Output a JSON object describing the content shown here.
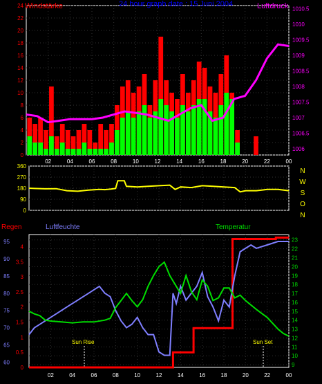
{
  "colors": {
    "background": "#000000",
    "wind_bar": "#ff0000",
    "wind_mean": "#00ff00",
    "pressure": "#ff00ff",
    "direction": "#ffff00",
    "humidity": "#7f7fff",
    "temperature": "#00dd00",
    "rain": "#ff0000",
    "grid": "#ffffff",
    "tick_text": "#ffffff"
  },
  "chart_data": [
    {
      "type": "bar",
      "title": "24 hour graph date : 15 Juni 2004",
      "left_label": "Windstärke",
      "right_label": "Luftdruck",
      "x_ticks": [
        "02",
        "04",
        "06",
        "08",
        "10",
        "12",
        "14",
        "16",
        "18",
        "20",
        "22",
        "00"
      ],
      "y_left_ticks": [
        "0",
        "2",
        "4",
        "6",
        "8",
        "10",
        "12",
        "14",
        "16",
        "18",
        "20",
        "22",
        "24"
      ],
      "y_left_range": [
        0,
        24
      ],
      "y_right_ticks": [
        "1006",
        "1006.5",
        "1007",
        "1007.5",
        "1008",
        "1008.5",
        "1009",
        "1009.5",
        "1010",
        "1010.5"
      ],
      "y_right_range": [
        1005.8,
        1010.6
      ],
      "x_range": [
        0,
        24
      ],
      "series": [
        {
          "name": "Windstärke",
          "x": [
            0.3,
            0.8,
            1.3,
            1.8,
            2.3,
            2.8,
            3.3,
            3.8,
            4.3,
            4.8,
            5.3,
            5.8,
            6.3,
            6.8,
            7.3,
            7.8,
            8.3,
            8.8,
            9.3,
            9.8,
            10.3,
            10.8,
            11.3,
            11.8,
            12.3,
            12.8,
            13.3,
            13.8,
            14.3,
            14.8,
            15.3,
            15.8,
            16.3,
            16.8,
            17.3,
            17.8,
            18.3,
            18.8,
            19.3,
            21.0
          ],
          "values": [
            6,
            5,
            6,
            4,
            11,
            3,
            5,
            4,
            3,
            4,
            5,
            4,
            2,
            5,
            4,
            5,
            8,
            11,
            12,
            10,
            11,
            13,
            8,
            12,
            19,
            12,
            10,
            9,
            13,
            10,
            12,
            15,
            14,
            11,
            10,
            13,
            16,
            10,
            4,
            3
          ]
        },
        {
          "name": "Mittelwind",
          "x": [
            0.3,
            0.8,
            1.3,
            1.8,
            2.3,
            2.8,
            3.3,
            3.8,
            4.3,
            4.8,
            5.3,
            5.8,
            6.3,
            6.8,
            7.3,
            7.8,
            8.3,
            8.8,
            9.3,
            9.8,
            10.3,
            10.8,
            11.3,
            11.8,
            12.3,
            12.8,
            13.3,
            13.8,
            14.3,
            14.8,
            15.3,
            15.8,
            16.3,
            16.8,
            17.3,
            17.8,
            18.3,
            18.8,
            19.3
          ],
          "values": [
            3,
            2,
            2,
            1,
            3,
            1,
            2,
            1,
            1,
            1,
            2,
            1,
            1,
            1,
            1,
            2,
            4,
            6,
            7,
            6,
            7,
            8,
            6,
            7,
            9,
            8,
            7,
            6,
            8,
            7,
            8,
            9,
            9,
            7,
            6,
            8,
            10,
            9,
            2
          ]
        },
        {
          "name": "Luftdruck",
          "x": [
            0,
            1,
            2,
            3,
            4,
            5,
            6,
            7,
            8,
            9,
            10,
            11,
            12,
            13,
            14,
            15,
            16,
            17,
            18,
            19,
            20,
            21,
            22,
            23,
            24
          ],
          "values": [
            1007.1,
            1007.05,
            1006.85,
            1006.9,
            1006.95,
            1006.95,
            1006.95,
            1007.0,
            1007.1,
            1007.2,
            1007.15,
            1007.1,
            1007.0,
            1006.9,
            1007.1,
            1007.3,
            1007.4,
            1006.9,
            1007.0,
            1007.6,
            1007.7,
            1008.2,
            1008.9,
            1009.35,
            1009.3
          ]
        }
      ]
    },
    {
      "type": "line",
      "x_ticks": [
        "02",
        "04",
        "06",
        "08",
        "10",
        "12",
        "14",
        "16",
        "18",
        "20",
        "22",
        "00"
      ],
      "y_left_ticks": [
        "0",
        "90",
        "180",
        "270",
        "360"
      ],
      "y_right_ticks": [
        "N",
        "W",
        "S",
        "O",
        "N"
      ],
      "y_range": [
        0,
        360
      ],
      "x_range": [
        0,
        24
      ],
      "series": [
        {
          "name": "Windrichtung",
          "x": [
            0,
            0.5,
            1.5,
            2.5,
            3.5,
            4.5,
            5.5,
            6.5,
            7.0,
            7.5,
            8.0,
            8.2,
            8.8,
            9.0,
            10,
            11,
            12,
            13,
            13.5,
            14,
            15,
            16,
            17,
            18,
            19,
            19.5,
            20,
            21,
            22,
            23,
            24
          ],
          "values": [
            180,
            178,
            175,
            176,
            160,
            155,
            165,
            170,
            168,
            172,
            178,
            240,
            240,
            195,
            190,
            195,
            200,
            205,
            170,
            190,
            185,
            200,
            195,
            190,
            185,
            150,
            160,
            160,
            170,
            170,
            160
          ]
        }
      ]
    },
    {
      "type": "line",
      "left_label": "Regen",
      "mid_label": "Luftfeuchte",
      "right_label": "Temperatur",
      "annotations": [
        "Sun Rise",
        "Sun Set"
      ],
      "x_ticks": [
        "02",
        "04",
        "06",
        "08",
        "10",
        "12",
        "14",
        "16",
        "18",
        "20",
        "22",
        "00"
      ],
      "y_rain_ticks": [
        "0",
        "0.5",
        "1",
        "1.5",
        "2",
        "2.5",
        "3",
        "3.5",
        "4"
      ],
      "y_rain_range": [
        0,
        4.4
      ],
      "y_hum_ticks": [
        "60",
        "65",
        "70",
        "75",
        "80",
        "85",
        "90",
        "95"
      ],
      "y_hum_range": [
        58.5,
        97
      ],
      "y_temp_ticks": [
        "9",
        "10",
        "11",
        "12",
        "13",
        "14",
        "15",
        "16",
        "17",
        "18",
        "19",
        "20",
        "21",
        "22",
        "23"
      ],
      "y_temp_range": [
        8.7,
        23.6
      ],
      "x_range": [
        0,
        24
      ],
      "series": [
        {
          "name": "Luftfeuchte",
          "x": [
            0,
            0.5,
            1,
            1.5,
            2,
            2.5,
            3,
            3.5,
            4,
            4.5,
            5,
            5.5,
            6,
            6.5,
            7,
            7.5,
            8,
            8.5,
            9,
            9.5,
            10,
            10.5,
            11,
            11.5,
            12,
            12.5,
            13,
            13.3,
            13.6,
            14,
            14.5,
            15,
            15.5,
            16,
            16.5,
            17,
            17.5,
            18,
            18.5,
            19,
            19.5,
            20,
            20.5,
            21,
            22,
            23,
            24
          ],
          "values": [
            68,
            70,
            71,
            72,
            73,
            74,
            75,
            76,
            77,
            78,
            79,
            80,
            81,
            82,
            80,
            79,
            75,
            72,
            70,
            71,
            73,
            70,
            68,
            68,
            63,
            62,
            62,
            80,
            77,
            82,
            78,
            80,
            82,
            86,
            79,
            76,
            72,
            78,
            76,
            85,
            92,
            93,
            94,
            93,
            94,
            95,
            95
          ]
        },
        {
          "name": "Temperatur",
          "x": [
            0,
            0.5,
            1,
            1.5,
            2,
            3,
            4,
            5,
            6,
            7,
            7.5,
            8,
            8.5,
            9,
            9.5,
            10,
            10.5,
            11,
            11.5,
            12,
            12.5,
            13,
            13.5,
            14,
            14.5,
            15,
            15.5,
            16,
            16.5,
            17,
            17.5,
            18,
            18.5,
            19,
            19.5,
            20,
            21,
            22,
            23,
            23.5,
            24
          ],
          "values": [
            15,
            14.7,
            14.5,
            14,
            13.9,
            13.8,
            13.7,
            13.8,
            13.8,
            14,
            14.2,
            15.4,
            16.2,
            17,
            16.2,
            15.5,
            16.3,
            17.8,
            19,
            20,
            20.5,
            19,
            18,
            17,
            19,
            17.2,
            16.3,
            18.5,
            17.8,
            16.2,
            16.5,
            17.6,
            17.6,
            16.5,
            16.8,
            16.2,
            15.2,
            14.3,
            13,
            12.5,
            12.2
          ]
        },
        {
          "name": "Regen",
          "x": [
            0,
            13.3,
            13.3,
            15.2,
            15.2,
            18.8,
            18.8,
            22.8,
            22.8,
            24
          ],
          "values": [
            0,
            0,
            0.5,
            0.5,
            1.3,
            1.3,
            4.25,
            4.25,
            4.3,
            4.3
          ]
        }
      ]
    }
  ]
}
